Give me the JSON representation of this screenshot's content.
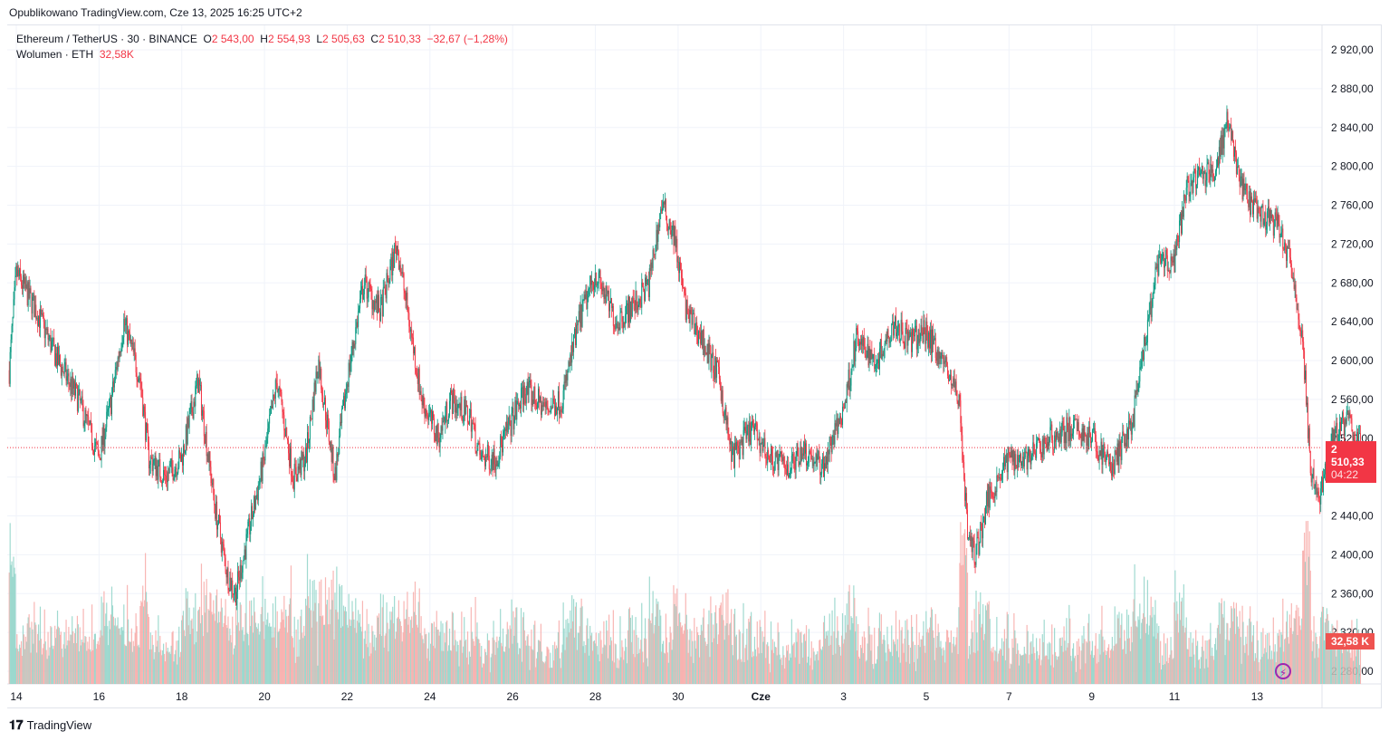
{
  "header": {
    "published": "Opublikowano TradingView.com, Cze 13, 2025 16:25 UTC+2"
  },
  "legend": {
    "symbol": "Ethereum / TetherUS · 30 · BINANCE",
    "o_label": "O",
    "o": "2 543,00",
    "h_label": "H",
    "h": "2 554,93",
    "l_label": "L",
    "l": "2 505,63",
    "c_label": "C",
    "c": "2 510,33",
    "change": "−32,67 (−1,28%)",
    "volume_label": "Wolumen · ETH",
    "volume": "32,58K"
  },
  "badges": {
    "price": "2 510,33",
    "countdown": "04:22",
    "volume": "32,58 K"
  },
  "footer": {
    "brand": "TradingView"
  },
  "colors": {
    "up": "#089981",
    "down": "#f23645",
    "up_vol": "#8fd3c8",
    "down_vol": "#f7a9a7"
  },
  "chart_data": {
    "type": "candlestick",
    "title": "Ethereum / TetherUS · 30 · BINANCE",
    "ylim": [
      2260,
      2940
    ],
    "y_ticks": [
      2920,
      2880,
      2840,
      2800,
      2760,
      2720,
      2680,
      2640,
      2600,
      2560,
      2520,
      2480,
      2440,
      2400,
      2360,
      2320,
      2280
    ],
    "y_tick_labels": [
      "2 920,00",
      "2 880,00",
      "2 840,00",
      "2 800,00",
      "2 760,00",
      "2 720,00",
      "2 680,00",
      "2 640,00",
      "2 600,00",
      "2 560,00",
      "2 520,00",
      "2 480,00",
      "2 440,00",
      "2 400,00",
      "2 360,00",
      "2 320,00",
      "2 280,00"
    ],
    "x_ticks": [
      {
        "day": 0,
        "label": "14"
      },
      {
        "day": 2,
        "label": "16"
      },
      {
        "day": 4,
        "label": "18"
      },
      {
        "day": 6,
        "label": "20"
      },
      {
        "day": 8,
        "label": "22"
      },
      {
        "day": 10,
        "label": "24"
      },
      {
        "day": 12,
        "label": "26"
      },
      {
        "day": 14,
        "label": "28"
      },
      {
        "day": 16,
        "label": "30"
      },
      {
        "day": 18,
        "label": "Cze"
      },
      {
        "day": 20,
        "label": "3"
      },
      {
        "day": 22,
        "label": "5"
      },
      {
        "day": 24,
        "label": "7"
      },
      {
        "day": 26,
        "label": "9"
      },
      {
        "day": 28,
        "label": "11"
      },
      {
        "day": 30,
        "label": "13"
      }
    ],
    "last_price": 2510.33,
    "price_path": [
      [
        -0.17,
        2590
      ],
      [
        0,
        2690
      ],
      [
        0.5,
        2650
      ],
      [
        1,
        2600
      ],
      [
        1.5,
        2560
      ],
      [
        2,
        2500
      ],
      [
        2.3,
        2560
      ],
      [
        2.6,
        2640
      ],
      [
        3,
        2580
      ],
      [
        3.2,
        2500
      ],
      [
        3.6,
        2480
      ],
      [
        4,
        2500
      ],
      [
        4.4,
        2580
      ],
      [
        4.8,
        2450
      ],
      [
        5.1,
        2380
      ],
      [
        5.3,
        2360
      ],
      [
        5.6,
        2420
      ],
      [
        6,
        2500
      ],
      [
        6.3,
        2580
      ],
      [
        6.7,
        2480
      ],
      [
        7,
        2500
      ],
      [
        7.3,
        2600
      ],
      [
        7.7,
        2480
      ],
      [
        8,
        2580
      ],
      [
        8.4,
        2680
      ],
      [
        8.8,
        2650
      ],
      [
        9.2,
        2720
      ],
      [
        9.5,
        2640
      ],
      [
        9.8,
        2560
      ],
      [
        10.2,
        2520
      ],
      [
        10.5,
        2560
      ],
      [
        11,
        2540
      ],
      [
        11.2,
        2500
      ],
      [
        11.6,
        2500
      ],
      [
        12,
        2540
      ],
      [
        12.3,
        2570
      ],
      [
        12.8,
        2550
      ],
      [
        13.2,
        2560
      ],
      [
        13.6,
        2640
      ],
      [
        14,
        2690
      ],
      [
        14.5,
        2640
      ],
      [
        15,
        2660
      ],
      [
        15.3,
        2680
      ],
      [
        15.6,
        2760
      ],
      [
        15.9,
        2730
      ],
      [
        16.2,
        2650
      ],
      [
        16.6,
        2620
      ],
      [
        17,
        2580
      ],
      [
        17.3,
        2500
      ],
      [
        17.8,
        2530
      ],
      [
        18.2,
        2500
      ],
      [
        18.7,
        2490
      ],
      [
        19,
        2510
      ],
      [
        19.5,
        2490
      ],
      [
        20,
        2550
      ],
      [
        20.3,
        2620
      ],
      [
        20.8,
        2600
      ],
      [
        21.2,
        2640
      ],
      [
        21.6,
        2620
      ],
      [
        22,
        2630
      ],
      [
        22.4,
        2600
      ],
      [
        22.8,
        2560
      ],
      [
        23,
        2420
      ],
      [
        23.2,
        2400
      ],
      [
        23.5,
        2460
      ],
      [
        24,
        2500
      ],
      [
        24.5,
        2500
      ],
      [
        25,
        2520
      ],
      [
        25.5,
        2530
      ],
      [
        26,
        2520
      ],
      [
        26.5,
        2490
      ],
      [
        27,
        2540
      ],
      [
        27.3,
        2620
      ],
      [
        27.6,
        2700
      ],
      [
        28,
        2700
      ],
      [
        28.3,
        2780
      ],
      [
        28.7,
        2790
      ],
      [
        29,
        2800
      ],
      [
        29.3,
        2850
      ],
      [
        29.6,
        2780
      ],
      [
        30,
        2750
      ],
      [
        30.5,
        2740
      ],
      [
        30.8,
        2700
      ],
      [
        31.1,
        2620
      ],
      [
        31.3,
        2480
      ],
      [
        31.5,
        2460
      ],
      [
        31.8,
        2520
      ],
      [
        32.2,
        2540
      ],
      [
        32.5,
        2510
      ]
    ],
    "volume_unit": "ETH"
  }
}
